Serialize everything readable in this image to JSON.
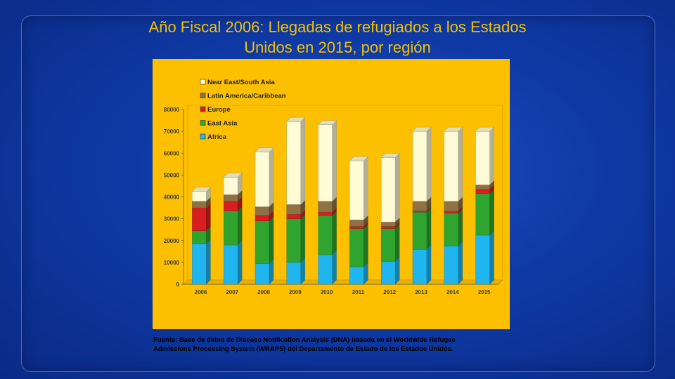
{
  "title": {
    "line1": "Año Fiscal 2006: Llegadas de refugiados a los Estados",
    "line2": "Unidos en 2015, por región"
  },
  "source": {
    "line1": "Fuente: Base de datos de Disease Notification Analysis (DNA) basada en el Worldwide Refugee",
    "line2": "Admissions Processing System (WRAPS) del Departamento de Estado de los Estados Unidos."
  },
  "colors": {
    "background": "#0f3aa6",
    "title": "#f2c200",
    "panel": "#fdc000",
    "Africa": "#1fb6f0",
    "East Asia": "#2fa52f",
    "Europe": "#d81e1e",
    "Latin America/Caribbean": "#8f7243",
    "Near East/South Asia": "#fffbd6"
  },
  "chart_data": {
    "type": "bar",
    "stacked": true,
    "categories": [
      "2006",
      "2007",
      "2008",
      "2009",
      "2010",
      "2011",
      "2012",
      "2013",
      "2014",
      "2015"
    ],
    "series": [
      {
        "name": "Africa",
        "values": [
          18500,
          18000,
          9500,
          10000,
          13500,
          8000,
          10500,
          16000,
          17500,
          22500
        ]
      },
      {
        "name": "East Asia",
        "values": [
          6000,
          15500,
          19500,
          20000,
          18000,
          17500,
          15000,
          17000,
          15000,
          19000
        ]
      },
      {
        "name": "Europe",
        "values": [
          10500,
          4500,
          2500,
          2000,
          1500,
          1000,
          1000,
          500,
          1000,
          2000
        ]
      },
      {
        "name": "Latin America/Caribbean",
        "values": [
          3000,
          3000,
          4000,
          4500,
          5000,
          3000,
          2000,
          4500,
          4500,
          2000
        ]
      },
      {
        "name": "Near East/South Asia",
        "values": [
          4500,
          8000,
          25000,
          38000,
          35000,
          27000,
          29500,
          32000,
          32000,
          24500
        ]
      }
    ],
    "yticks": [
      0,
      10000,
      20000,
      30000,
      40000,
      50000,
      60000,
      70000,
      80000
    ],
    "ylim": [
      0,
      80000
    ],
    "legend": [
      "Near East/South Asia",
      "Latin America/Caribbean",
      "Europe",
      "East Asia",
      "Africa"
    ],
    "legend_position": "top-left",
    "xlabel": "",
    "ylabel": "",
    "style": "3d-stacked-column"
  }
}
